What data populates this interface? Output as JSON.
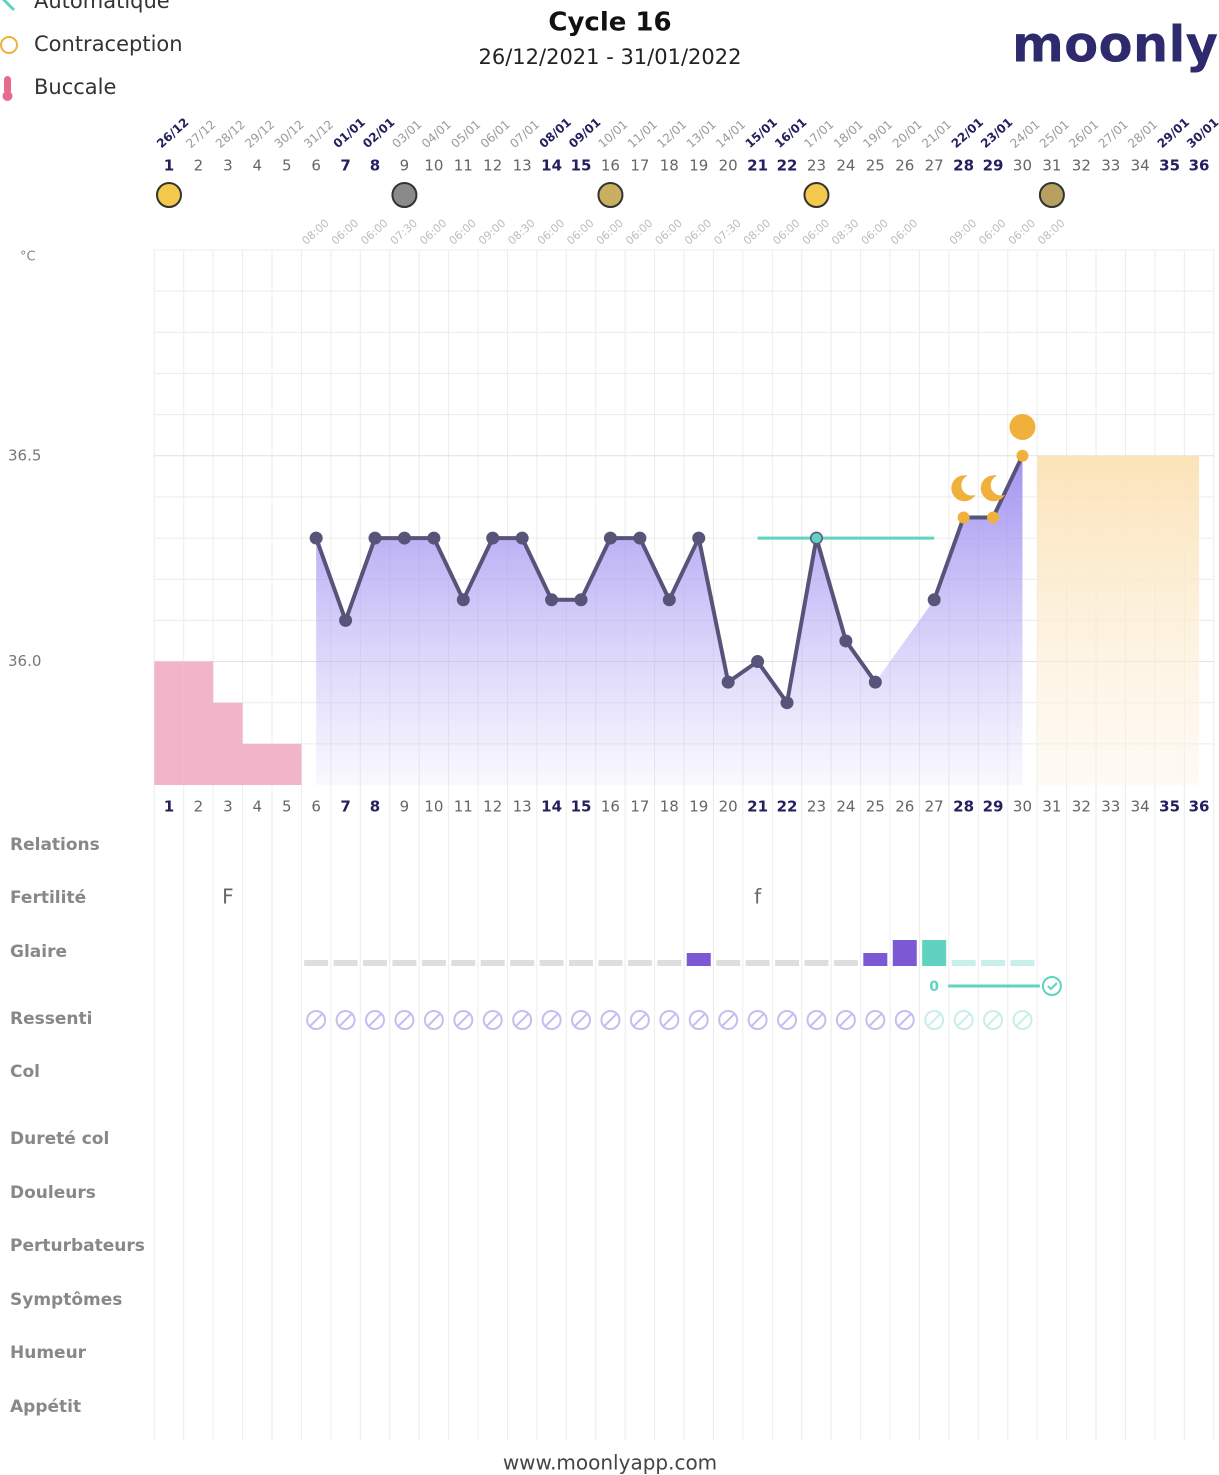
{
  "legend": [
    "Automatique",
    "Contraception",
    "Buccale"
  ],
  "header": {
    "title": "Cycle 16",
    "dates": "26/12/2021 - 31/01/2022",
    "logo": "moonly"
  },
  "chart_data": {
    "type": "line",
    "y_unit": "°C",
    "days": [
      1,
      2,
      3,
      4,
      5,
      6,
      7,
      8,
      9,
      10,
      11,
      12,
      13,
      14,
      15,
      16,
      17,
      18,
      19,
      20,
      21,
      22,
      23,
      24,
      25,
      26,
      27,
      28,
      29,
      30,
      31,
      32,
      33,
      34,
      35,
      36
    ],
    "dates": [
      "26/12",
      "27/12",
      "28/12",
      "29/12",
      "30/12",
      "31/12",
      "01/01",
      "02/01",
      "03/01",
      "04/01",
      "05/01",
      "06/01",
      "07/01",
      "08/01",
      "09/01",
      "10/01",
      "11/01",
      "12/01",
      "13/01",
      "14/01",
      "15/01",
      "16/01",
      "17/01",
      "18/01",
      "19/01",
      "20/01",
      "21/01",
      "22/01",
      "23/01",
      "24/01",
      "25/01",
      "26/01",
      "27/01",
      "28/01",
      "29/01",
      "30/01"
    ],
    "weekends": [
      1,
      7,
      8,
      14,
      15,
      21,
      22,
      28,
      29,
      35,
      36
    ],
    "times": [
      null,
      null,
      null,
      null,
      null,
      "08:00",
      "06:00",
      "06:00",
      "07:30",
      "06:00",
      "06:00",
      "09:00",
      "08:30",
      "06:00",
      "06:00",
      "06:00",
      "06:00",
      "06:00",
      "06:00",
      "07:30",
      "08:00",
      "06:00",
      "06:00",
      "08:30",
      "06:00",
      "06:00",
      null,
      "09:00",
      "06:00",
      "06:00",
      "08:00",
      null,
      null,
      null,
      null,
      null
    ],
    "values": [
      null,
      null,
      null,
      null,
      null,
      36.3,
      36.1,
      36.3,
      36.3,
      36.3,
      36.15,
      36.3,
      36.3,
      36.15,
      36.15,
      36.3,
      36.3,
      36.15,
      36.3,
      35.95,
      36.0,
      35.9,
      36.3,
      36.05,
      35.95,
      null,
      36.15,
      36.35,
      36.35,
      36.5,
      null,
      null,
      null,
      null,
      null,
      null
    ],
    "color": "#57547a",
    "ylim": [
      35.7,
      37.0
    ],
    "yticks": [
      {
        "value": 36.0,
        "label": "36.0"
      },
      {
        "value": 36.5,
        "label": "36.5"
      }
    ],
    "grid_yticks": [
      35.8,
      35.9,
      36.1,
      36.2,
      36.3,
      36.4,
      36.6,
      36.7,
      36.8,
      36.9,
      37.0
    ],
    "grid": true,
    "coverline": {
      "value": 36.3,
      "from": 21,
      "to": 27,
      "color": "#5fd3c0"
    },
    "period": [
      36.0,
      36.0,
      35.9,
      35.8,
      35.8
    ],
    "period_color": "#f2b4c8",
    "forecast": {
      "from": 31,
      "to": 36,
      "value": 36.5,
      "color": "#fbe9c9"
    },
    "moon_phases": [
      {
        "day": 1,
        "color": "#f2c94c"
      },
      {
        "day": 9,
        "color": "#8a8a8a"
      },
      {
        "day": 16,
        "color": "#c9b060"
      },
      {
        "day": 23,
        "color": "#f2c94c"
      },
      {
        "day": 31,
        "color": "#b8a060"
      }
    ],
    "markers": [
      {
        "day": 28,
        "value": 36.42,
        "icon": "moon"
      },
      {
        "day": 29,
        "value": 36.42,
        "icon": "moon"
      },
      {
        "day": 30,
        "value": 36.57,
        "icon": "sun"
      }
    ],
    "marker_color": "#f0b03c"
  },
  "rows": {
    "labels": [
      "Relations",
      "Fertilité",
      "Glaire",
      "Ressenti",
      "Col",
      "Dureté col",
      "Douleurs",
      "Perturbateurs",
      "Symptômes",
      "Humeur",
      "Appétit"
    ],
    "fertility": [
      {
        "day": 3,
        "label": "F"
      },
      {
        "day": 21,
        "label": "f"
      }
    ],
    "glaire": [
      null,
      null,
      null,
      null,
      null,
      0,
      0,
      0,
      0,
      0,
      0,
      0,
      0,
      0,
      0,
      0,
      0,
      0,
      1,
      0,
      0,
      0,
      0,
      0,
      1,
      2,
      2,
      0,
      0,
      0,
      null,
      null,
      null,
      null,
      null,
      null
    ],
    "peak_day": 27,
    "peak_label": "0",
    "ressenti": [
      6,
      30
    ]
  },
  "footer": "www.moonlyapp.com"
}
